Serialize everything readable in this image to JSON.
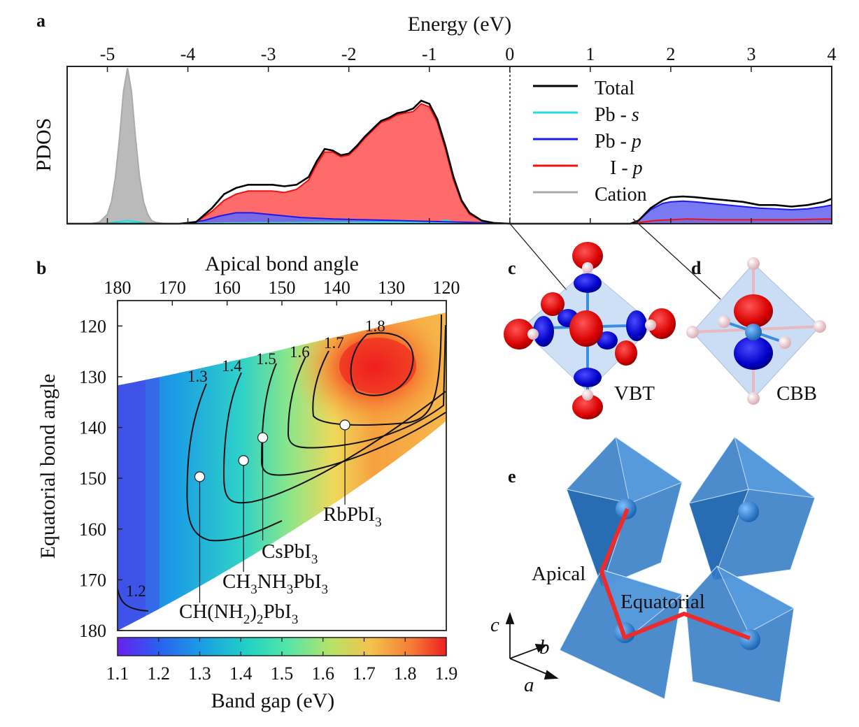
{
  "panels": {
    "a": "a",
    "b": "b",
    "c": "c",
    "d": "d",
    "e": "e"
  },
  "chart_data": [
    {
      "type": "area",
      "panel": "a",
      "xlabel": "Energy (eV)",
      "ylabel": "PDOS",
      "xlim": [
        -5.5,
        4
      ],
      "xticks": [
        -5,
        -4,
        -3,
        -2,
        -1,
        0,
        1,
        2,
        3,
        4
      ],
      "xtick_labels": [
        "-5",
        "-4",
        "-3",
        "-2",
        "-1",
        "0",
        "1",
        "2",
        "3",
        "4"
      ],
      "fermi_level": 0,
      "legend_position": "top-right",
      "legend": [
        "Total",
        "Pb - ",
        "Pb - ",
        "I - ",
        "Cation"
      ],
      "legend_italic": [
        "",
        "s",
        "p",
        "p",
        ""
      ],
      "series": [
        {
          "name": "Total",
          "color": "#000000",
          "x": [
            -5.5,
            -4.1,
            -3.9,
            -3.7,
            -3.55,
            -3.4,
            -3.25,
            -3.1,
            -2.95,
            -2.8,
            -2.65,
            -2.5,
            -2.4,
            -2.3,
            -2.2,
            -2.1,
            -2.0,
            -1.9,
            -1.8,
            -1.7,
            -1.6,
            -1.5,
            -1.4,
            -1.3,
            -1.2,
            -1.1,
            -1.0,
            -0.9,
            -0.8,
            -0.7,
            -0.6,
            -0.5,
            -0.35,
            -0.2,
            0,
            1.5,
            1.6,
            1.75,
            1.9,
            2.0,
            2.15,
            2.3,
            2.5,
            2.7,
            2.9,
            3.1,
            3.3,
            3.5,
            3.7,
            3.9,
            4.0
          ],
          "y": [
            0,
            0,
            0.01,
            0.1,
            0.19,
            0.23,
            0.25,
            0.25,
            0.25,
            0.24,
            0.25,
            0.3,
            0.4,
            0.48,
            0.47,
            0.44,
            0.45,
            0.5,
            0.56,
            0.61,
            0.66,
            0.68,
            0.71,
            0.72,
            0.74,
            0.79,
            0.77,
            0.67,
            0.5,
            0.3,
            0.15,
            0.07,
            0.02,
            0.005,
            0,
            0,
            0.02,
            0.1,
            0.15,
            0.17,
            0.175,
            0.17,
            0.16,
            0.15,
            0.14,
            0.12,
            0.12,
            0.11,
            0.12,
            0.14,
            0.16
          ]
        },
        {
          "name": "I - p",
          "color": "#ee1111",
          "x": [
            -5.5,
            -4.1,
            -3.9,
            -3.7,
            -3.55,
            -3.4,
            -3.25,
            -3.1,
            -2.95,
            -2.8,
            -2.65,
            -2.5,
            -2.4,
            -2.3,
            -2.2,
            -2.1,
            -2.0,
            -1.9,
            -1.8,
            -1.7,
            -1.6,
            -1.5,
            -1.4,
            -1.3,
            -1.2,
            -1.1,
            -1.0,
            -0.9,
            -0.8,
            -0.7,
            -0.6,
            -0.5,
            -0.35,
            -0.2,
            0,
            1.5,
            1.8,
            2.2,
            2.6,
            3.0,
            3.5,
            4.0
          ],
          "y": [
            0,
            0,
            0.01,
            0.08,
            0.15,
            0.19,
            0.21,
            0.21,
            0.21,
            0.2,
            0.22,
            0.28,
            0.38,
            0.46,
            0.46,
            0.43,
            0.44,
            0.49,
            0.55,
            0.6,
            0.65,
            0.67,
            0.7,
            0.71,
            0.72,
            0.77,
            0.75,
            0.65,
            0.48,
            0.28,
            0.14,
            0.06,
            0.02,
            0.005,
            0,
            0,
            0.02,
            0.03,
            0.025,
            0.025,
            0.025,
            0.03
          ]
        },
        {
          "name": "Pb - p",
          "color": "#1a1aee",
          "x": [
            -5.5,
            -4.1,
            -3.8,
            -3.6,
            -3.4,
            -3.2,
            -3.0,
            -2.6,
            -2.2,
            -1.8,
            -1.4,
            -1.0,
            -0.6,
            -0.2,
            0,
            1.5,
            1.6,
            1.75,
            1.9,
            2.0,
            2.15,
            2.3,
            2.5,
            2.7,
            2.9,
            3.1,
            3.3,
            3.5,
            3.7,
            3.9,
            4.0
          ],
          "y": [
            0,
            0,
            0.02,
            0.05,
            0.07,
            0.07,
            0.06,
            0.04,
            0.03,
            0.025,
            0.02,
            0.015,
            0.01,
            0.004,
            0,
            0,
            0.02,
            0.09,
            0.13,
            0.14,
            0.145,
            0.14,
            0.13,
            0.12,
            0.11,
            0.1,
            0.095,
            0.09,
            0.095,
            0.11,
            0.12
          ]
        },
        {
          "name": "Pb - s",
          "color": "#22dddd",
          "x": [
            -5.5,
            -5.0,
            -4.9,
            -4.75,
            -4.6,
            -4.5,
            -4.1,
            -3.5,
            -2.5,
            -1.5,
            -0.9,
            -0.8,
            -0.7,
            -0.5,
            0,
            4.0
          ],
          "y": [
            0,
            0,
            0.01,
            0.02,
            0.01,
            0,
            0,
            0.005,
            0.008,
            0.01,
            0.012,
            0.022,
            0.012,
            0.004,
            0,
            0
          ]
        },
        {
          "name": "Cation",
          "color": "#aaaaaa",
          "x": [
            -5.5,
            -5.2,
            -5.1,
            -5.0,
            -4.95,
            -4.9,
            -4.85,
            -4.8,
            -4.75,
            -4.7,
            -4.65,
            -4.6,
            -4.55,
            -4.5,
            -4.45,
            -4.4,
            -4.3,
            -4.2,
            4.0
          ],
          "y": [
            0,
            0,
            0.01,
            0.06,
            0.14,
            0.3,
            0.55,
            0.85,
            1.0,
            0.85,
            0.55,
            0.3,
            0.14,
            0.06,
            0.02,
            0.008,
            0.001,
            0,
            0
          ]
        }
      ]
    },
    {
      "type": "heatmap",
      "panel": "b",
      "xlabel": "Apical bond angle",
      "ylabel": "Equatorial bond angle",
      "xlim": [
        180,
        120
      ],
      "ylim": [
        115,
        180
      ],
      "xticks": [
        180,
        170,
        160,
        150,
        140,
        130,
        120
      ],
      "yticks": [
        120,
        130,
        140,
        150,
        160,
        170,
        180
      ],
      "xtick_labels": [
        "180",
        "170",
        "160",
        "150",
        "140",
        "130",
        "120"
      ],
      "ytick_labels": [
        "120",
        "130",
        "140",
        "150",
        "160",
        "170",
        "180"
      ],
      "colorbar": {
        "label": "Band gap (eV)",
        "range": [
          1.1,
          1.9
        ],
        "ticks": [
          1.1,
          1.2,
          1.3,
          1.4,
          1.5,
          1.6,
          1.7,
          1.8,
          1.9
        ],
        "tick_labels": [
          "1.1",
          "1.2",
          "1.3",
          "1.4",
          "1.5",
          "1.6",
          "1.7",
          "1.8",
          "1.9"
        ]
      },
      "contour_levels": [
        "1.2",
        "1.3",
        "1.4",
        "1.5",
        "1.6",
        "1.7",
        "1.8"
      ],
      "points": [
        {
          "label": "CH(NH",
          "sub1": "2",
          "mid": ")",
          "sub2": "2",
          "tail": "PbI",
          "sub3": "3",
          "apical": 165,
          "equatorial": 149.7
        },
        {
          "label": "CH",
          "sub1": "3",
          "mid": "NH",
          "sub2": "3",
          "tail": "PbI",
          "sub3": "3",
          "apical": 157,
          "equatorial": 146.5
        },
        {
          "label": "CsPbI",
          "sub1": "3",
          "apical": 153.5,
          "equatorial": 142
        },
        {
          "label": "RbPbI",
          "sub1": "3",
          "apical": 138.5,
          "equatorial": 139.5
        }
      ]
    }
  ],
  "orbitals": {
    "vbt": "VBT",
    "cbb": "CBB"
  },
  "structure": {
    "apical": "Apical",
    "equatorial": "Equatorial",
    "axis_a": "a",
    "axis_b": "b",
    "axis_c": "c"
  }
}
